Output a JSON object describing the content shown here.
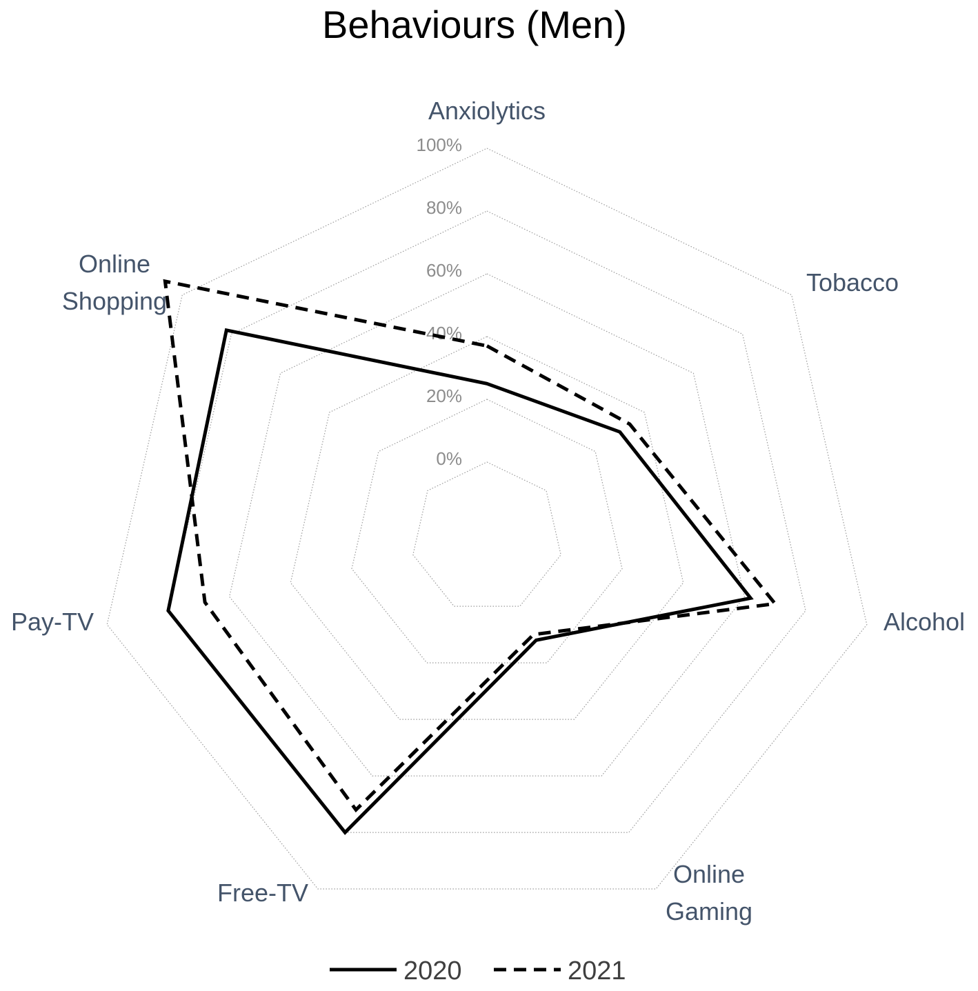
{
  "chart_data": {
    "type": "radar",
    "title": "Behaviours (Men)",
    "categories": [
      "Anxiolytics",
      "Tobacco",
      "Alcohol",
      "Online Gaming",
      "Free-TV",
      "Pay-TV",
      "Online Shopping"
    ],
    "category_labels": [
      [
        "Anxiolytics"
      ],
      [
        "Tobacco"
      ],
      [
        "Alcohol"
      ],
      [
        "Online",
        "Gaming"
      ],
      [
        "Free-TV"
      ],
      [
        "Pay-TV"
      ],
      [
        "Online",
        "Shopping"
      ]
    ],
    "radial_ticks": [
      "0%",
      "20%",
      "40%",
      "60%",
      "80%",
      "100%"
    ],
    "ylim": [
      0,
      100
    ],
    "grid": true,
    "legend_position": "bottom",
    "series": [
      {
        "name": "2020",
        "style": "solid",
        "color": "#000000",
        "values": [
          25,
          30,
          62,
          12,
          80,
          80,
          82
        ]
      },
      {
        "name": "2021",
        "style": "dashed",
        "color": "#000000",
        "values": [
          37,
          34,
          70,
          10,
          72,
          68,
          107
        ]
      }
    ]
  }
}
